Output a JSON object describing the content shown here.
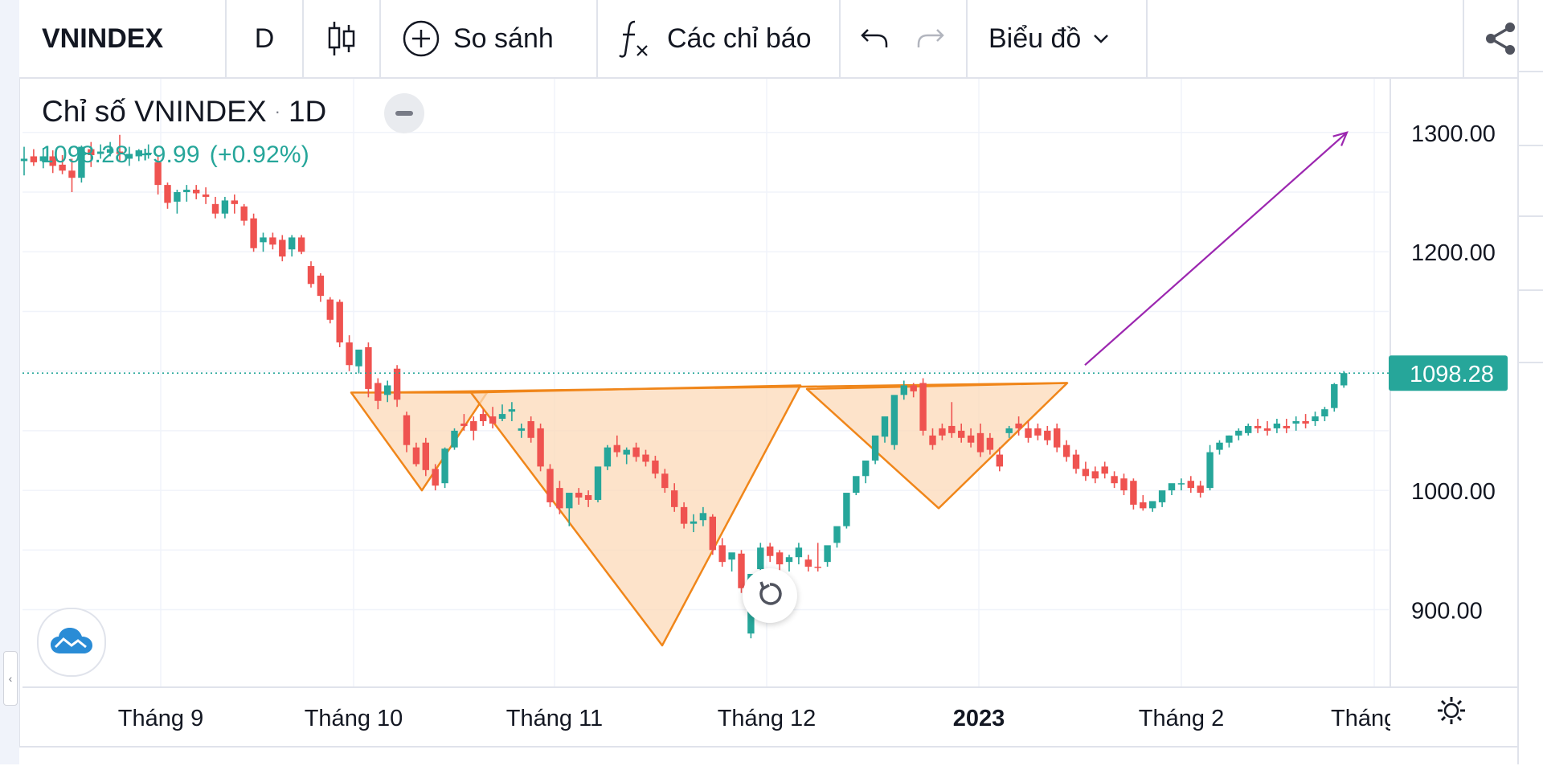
{
  "toolbar": {
    "symbol": "VNINDEX",
    "interval": "D",
    "compare_label": "So sánh",
    "indicators_label": "Các chỉ báo",
    "chart_label": "Biểu đồ"
  },
  "legend": {
    "title": "Chỉ số VNINDEX",
    "interval": "1D",
    "last": "1098.28",
    "change": "+9.99",
    "change_pct": "(+0.92%)"
  },
  "colors": {
    "up": "#26a69a",
    "down": "#ef5350",
    "pattern_stroke": "#f0861a",
    "pattern_fill": "#fcd9b8",
    "arrow": "#9c27b0",
    "price_tag": "#26a69a"
  },
  "chart_data": {
    "type": "candlestick",
    "y_axis_ticks": [
      "1300.00",
      "1200.00",
      "1000.00",
      "900.00"
    ],
    "x_axis_ticks": [
      "Tháng 9",
      "Tháng 10",
      "Tháng 11",
      "Tháng 12",
      "2023",
      "Tháng 2",
      "Tháng"
    ],
    "ylim": [
      835,
      1345
    ],
    "last_price": 1098.28,
    "last_price_label": "1098.28",
    "grid": true,
    "candles": [
      [
        1276,
        1288,
        1278,
        1264
      ],
      [
        1280,
        1286,
        1275,
        1272
      ],
      [
        1276,
        1287,
        1280,
        1270
      ],
      [
        1280,
        1285,
        1272,
        1266
      ],
      [
        1273,
        1281,
        1268,
        1265
      ],
      [
        1268,
        1278,
        1262,
        1250
      ],
      [
        1262,
        1289,
        1288,
        1258
      ],
      [
        1286,
        1292,
        1281,
        1271
      ],
      [
        1282,
        1290,
        1284,
        1278
      ],
      [
        1283,
        1292,
        1286,
        1280
      ],
      [
        1284,
        1298,
        1282,
        1276
      ],
      [
        1278,
        1288,
        1282,
        1272
      ],
      [
        1280,
        1286,
        1285,
        1276
      ],
      [
        1282,
        1290,
        1283,
        1278
      ],
      [
        1275,
        1280,
        1256,
        1248
      ],
      [
        1256,
        1258,
        1241,
        1236
      ],
      [
        1242,
        1252,
        1250,
        1232
      ],
      [
        1250,
        1256,
        1252,
        1242
      ],
      [
        1252,
        1256,
        1249,
        1244
      ],
      [
        1248,
        1254,
        1246,
        1240
      ],
      [
        1240,
        1246,
        1232,
        1228
      ],
      [
        1232,
        1246,
        1243,
        1228
      ],
      [
        1243,
        1248,
        1240,
        1232
      ],
      [
        1238,
        1240,
        1226,
        1222
      ],
      [
        1228,
        1232,
        1203,
        1200
      ],
      [
        1208,
        1216,
        1212,
        1200
      ],
      [
        1212,
        1216,
        1206,
        1202
      ],
      [
        1210,
        1214,
        1196,
        1192
      ],
      [
        1202,
        1214,
        1212,
        1196
      ],
      [
        1212,
        1214,
        1200,
        1198
      ],
      [
        1188,
        1192,
        1173,
        1170
      ],
      [
        1180,
        1182,
        1163,
        1158
      ],
      [
        1160,
        1162,
        1143,
        1140
      ],
      [
        1158,
        1160,
        1124,
        1120
      ],
      [
        1124,
        1130,
        1105,
        1100
      ],
      [
        1104,
        1108,
        1118,
        1098
      ],
      [
        1120,
        1124,
        1085,
        1078
      ],
      [
        1090,
        1094,
        1075,
        1068
      ],
      [
        1080,
        1092,
        1088,
        1074
      ],
      [
        1102,
        1105,
        1076,
        1070
      ],
      [
        1063,
        1066,
        1038,
        1032
      ],
      [
        1036,
        1040,
        1022,
        1020
      ],
      [
        1040,
        1044,
        1017,
        1012
      ],
      [
        1018,
        1022,
        1004,
        1000
      ],
      [
        1006,
        1036,
        1035,
        1002
      ],
      [
        1036,
        1052,
        1050,
        1034
      ],
      [
        1056,
        1064,
        1054,
        1050
      ],
      [
        1058,
        1062,
        1050,
        1042
      ],
      [
        1064,
        1068,
        1058,
        1054
      ],
      [
        1062,
        1070,
        1056,
        1052
      ],
      [
        1060,
        1072,
        1064,
        1058
      ],
      [
        1066,
        1074,
        1068,
        1058
      ],
      [
        1050,
        1056,
        1052,
        1044
      ],
      [
        1058,
        1062,
        1044,
        1040
      ],
      [
        1052,
        1056,
        1020,
        1016
      ],
      [
        1018,
        1022,
        990,
        986
      ],
      [
        1002,
        1008,
        985,
        980
      ],
      [
        985,
        990,
        998,
        970
      ],
      [
        998,
        1002,
        994,
        988
      ],
      [
        996,
        1000,
        992,
        986
      ],
      [
        992,
        1004,
        1020,
        990
      ],
      [
        1020,
        1038,
        1036,
        1017
      ],
      [
        1038,
        1046,
        1032,
        1028
      ],
      [
        1030,
        1036,
        1034,
        1022
      ],
      [
        1036,
        1040,
        1028,
        1024
      ],
      [
        1030,
        1034,
        1024,
        1020
      ],
      [
        1025,
        1029,
        1014,
        1010
      ],
      [
        1014,
        1018,
        1002,
        998
      ],
      [
        1000,
        1006,
        986,
        982
      ],
      [
        986,
        990,
        972,
        968
      ],
      [
        972,
        980,
        974,
        965
      ],
      [
        975,
        986,
        981,
        970
      ],
      [
        978,
        980,
        950,
        946
      ],
      [
        954,
        960,
        940,
        936
      ],
      [
        942,
        947,
        948,
        932
      ],
      [
        947,
        950,
        918,
        914
      ],
      [
        880,
        886,
        930,
        876
      ],
      [
        934,
        956,
        952,
        928
      ],
      [
        953,
        956,
        945,
        940
      ],
      [
        948,
        950,
        938,
        932
      ],
      [
        940,
        946,
        944,
        932
      ],
      [
        944,
        956,
        952,
        938
      ],
      [
        942,
        946,
        936,
        932
      ],
      [
        936,
        956,
        935,
        932
      ],
      [
        940,
        946,
        954,
        936
      ],
      [
        956,
        960,
        970,
        952
      ],
      [
        970,
        972,
        998,
        968
      ],
      [
        998,
        1002,
        1012,
        996
      ],
      [
        1012,
        1016,
        1025,
        1006
      ],
      [
        1025,
        1028,
        1046,
        1022
      ],
      [
        1045,
        1050,
        1062,
        1040
      ],
      [
        1038,
        1048,
        1080,
        1034
      ],
      [
        1080,
        1092,
        1088,
        1076
      ],
      [
        1088,
        1090,
        1083,
        1078
      ],
      [
        1090,
        1094,
        1050,
        1046
      ],
      [
        1046,
        1052,
        1038,
        1034
      ],
      [
        1052,
        1056,
        1046,
        1042
      ],
      [
        1054,
        1074,
        1048,
        1044
      ],
      [
        1050,
        1056,
        1044,
        1040
      ],
      [
        1046,
        1052,
        1040,
        1036
      ],
      [
        1048,
        1056,
        1032,
        1028
      ],
      [
        1044,
        1048,
        1034,
        1030
      ],
      [
        1030,
        1036,
        1020,
        1016
      ],
      [
        1048,
        1054,
        1052,
        1044
      ],
      [
        1056,
        1062,
        1052,
        1046
      ],
      [
        1052,
        1058,
        1044,
        1040
      ],
      [
        1052,
        1056,
        1046,
        1042
      ],
      [
        1050,
        1054,
        1042,
        1038
      ],
      [
        1052,
        1056,
        1036,
        1032
      ],
      [
        1038,
        1042,
        1028,
        1024
      ],
      [
        1030,
        1034,
        1018,
        1014
      ],
      [
        1018,
        1024,
        1012,
        1008
      ],
      [
        1016,
        1020,
        1010,
        1006
      ],
      [
        1020,
        1024,
        1014,
        1010
      ],
      [
        1012,
        1016,
        1006,
        1002
      ],
      [
        1010,
        1014,
        1000,
        996
      ],
      [
        1008,
        1010,
        988,
        984
      ],
      [
        990,
        996,
        985,
        983
      ],
      [
        985,
        990,
        991,
        982
      ],
      [
        990,
        996,
        1000,
        986
      ],
      [
        1000,
        1004,
        1006,
        996
      ],
      [
        1005,
        1010,
        1006,
        1000
      ],
      [
        1008,
        1012,
        1002,
        998
      ],
      [
        1004,
        1008,
        998,
        994
      ],
      [
        1002,
        1038,
        1032,
        1000
      ],
      [
        1034,
        1042,
        1040,
        1030
      ],
      [
        1040,
        1046,
        1046,
        1036
      ],
      [
        1046,
        1052,
        1050,
        1042
      ],
      [
        1048,
        1056,
        1054,
        1046
      ],
      [
        1054,
        1060,
        1052,
        1048
      ],
      [
        1052,
        1058,
        1050,
        1046
      ],
      [
        1052,
        1060,
        1056,
        1048
      ],
      [
        1054,
        1060,
        1052,
        1048
      ],
      [
        1056,
        1062,
        1058,
        1050
      ],
      [
        1058,
        1064,
        1056,
        1052
      ],
      [
        1058,
        1066,
        1062,
        1054
      ],
      [
        1062,
        1070,
        1068,
        1058
      ],
      [
        1069,
        1090,
        1089,
        1066
      ],
      [
        1088,
        1100,
        1098.28,
        1086
      ]
    ],
    "pattern": {
      "shape": "inverse head and shoulders",
      "left_shoulder": [
        [
          1082,
          1080
        ],
        [
          1000,
          1002
        ],
        [
          1082,
          1083
        ]
      ],
      "head": [
        [
          1082,
          1083
        ],
        [
          870,
          870
        ],
        [
          1088,
          1096
        ]
      ],
      "right_shoulder": [
        [
          1085,
          1086
        ],
        [
          985,
          985
        ],
        [
          1090,
          1094
        ]
      ],
      "neckline": [
        1082,
        1090
      ]
    },
    "projection": {
      "from": 1105,
      "to": 1300
    }
  }
}
